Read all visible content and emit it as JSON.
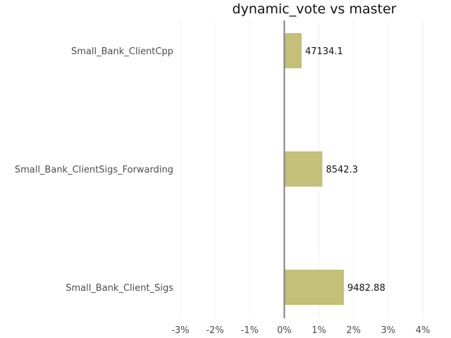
{
  "chart_data": {
    "type": "bar",
    "orientation": "horizontal",
    "title": "dynamic_vote vs master",
    "xlabel": "",
    "ylabel": "",
    "categories": [
      "Small_Bank_ClientCpp",
      "Small_Bank_ClientSigs_Forwarding",
      "Small_Bank_Client_Sigs"
    ],
    "values": [
      0.5,
      1.1,
      1.72
    ],
    "value_unit": "%",
    "data_labels": [
      "47134.1",
      "8542.3",
      "9482.88"
    ],
    "xlim": [
      -3,
      4
    ],
    "xticks": [
      -3,
      -2,
      -1,
      0,
      1,
      2,
      3,
      4
    ],
    "xtick_labels": [
      "-3%",
      "-2%",
      "-1%",
      "0%",
      "1%",
      "2%",
      "3%",
      "4%"
    ],
    "grid": "vertical",
    "legend": "none",
    "colors": {
      "bar": "#c4bf79",
      "zero_line": "#808080",
      "grid": "#f2f2f2"
    }
  }
}
